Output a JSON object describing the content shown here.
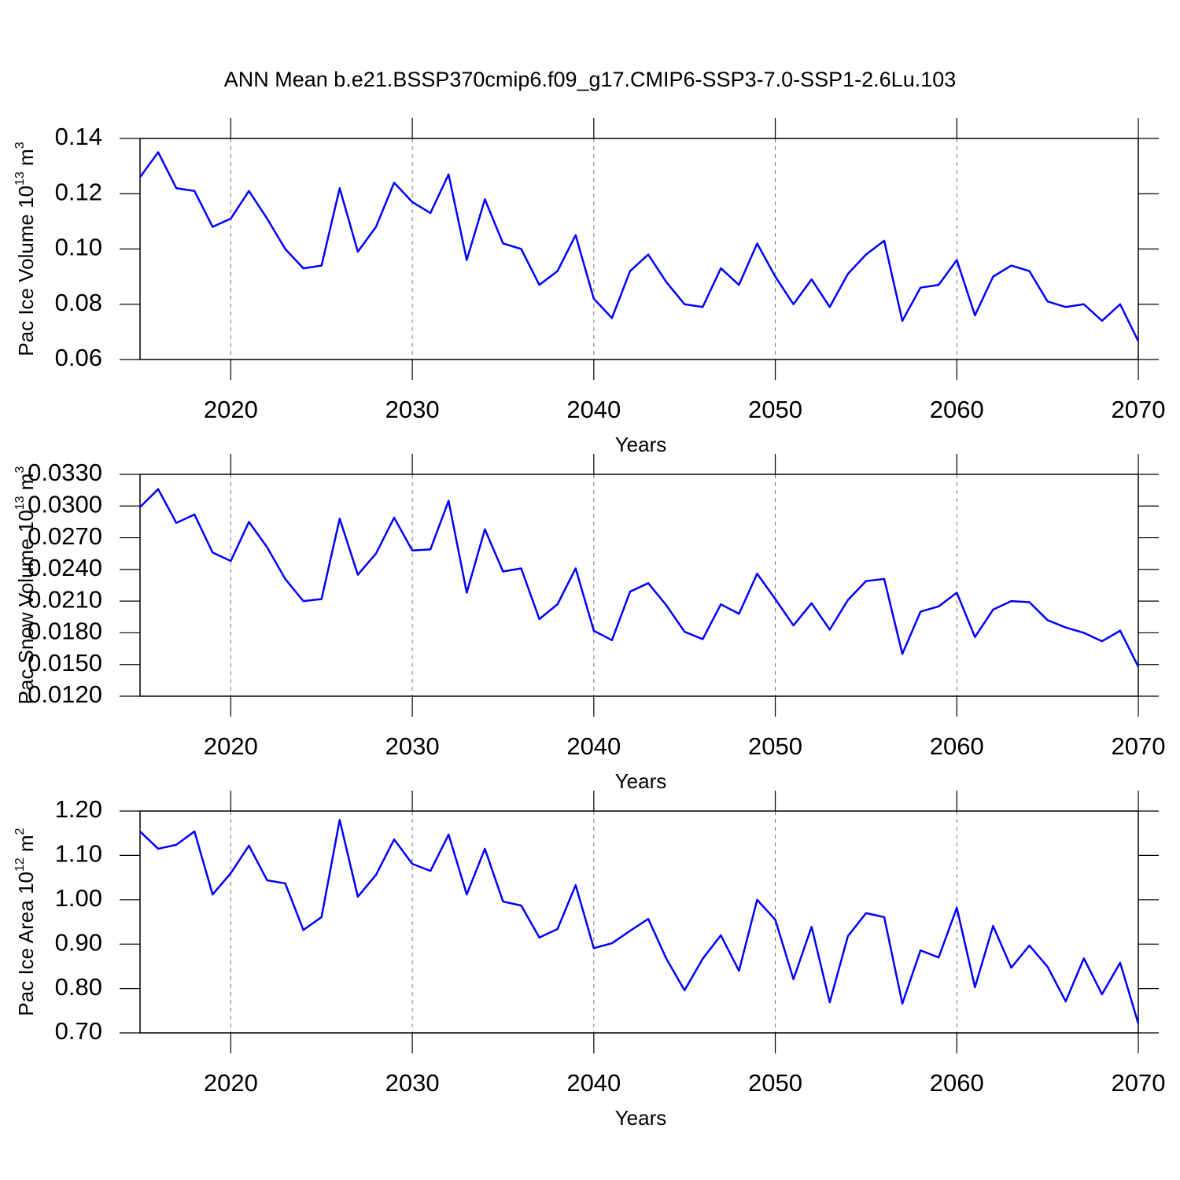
{
  "chart_data": [
    {
      "type": "line",
      "title": "ANN Mean b.e21.BSSP370cmip6.f09_g17.CMIP6-SSP3-7.0-SSP1-2.6Lu.103",
      "ylabel": [
        "Pac Ice Volume 10",
        "13",
        " m",
        "3"
      ],
      "xlabel": "Years",
      "color": "#0000ff",
      "grid": true,
      "x": [
        2015,
        2016,
        2017,
        2018,
        2019,
        2020,
        2021,
        2022,
        2023,
        2024,
        2025,
        2026,
        2027,
        2028,
        2029,
        2030,
        2031,
        2032,
        2033,
        2034,
        2035,
        2036,
        2037,
        2038,
        2039,
        2040,
        2041,
        2042,
        2043,
        2044,
        2045,
        2046,
        2047,
        2048,
        2049,
        2050,
        2051,
        2052,
        2053,
        2054,
        2055,
        2056,
        2057,
        2058,
        2059,
        2060,
        2061,
        2062,
        2063,
        2064,
        2065,
        2066,
        2067,
        2068,
        2069,
        2070
      ],
      "values": [
        0.126,
        0.135,
        0.122,
        0.121,
        0.108,
        0.111,
        0.121,
        0.111,
        0.1,
        0.093,
        0.094,
        0.122,
        0.099,
        0.108,
        0.124,
        0.117,
        0.113,
        0.127,
        0.096,
        0.118,
        0.102,
        0.1,
        0.087,
        0.092,
        0.105,
        0.082,
        0.075,
        0.092,
        0.098,
        0.088,
        0.08,
        0.079,
        0.093,
        0.087,
        0.102,
        0.09,
        0.08,
        0.089,
        0.079,
        0.091,
        0.098,
        0.103,
        0.074,
        0.086,
        0.087,
        0.096,
        0.076,
        0.09,
        0.094,
        0.092,
        0.081,
        0.079,
        0.08,
        0.074,
        0.08,
        0.0666
      ],
      "xlim": [
        2015,
        2070
      ],
      "xticks": [
        2020,
        2030,
        2040,
        2050,
        2060,
        2070
      ],
      "ylim": [
        0.06,
        0.14
      ],
      "yticks": [
        0.06,
        0.08,
        {
          "value": 0.1,
          "label": "0.10"
        },
        0.12,
        0.14
      ]
    },
    {
      "type": "line",
      "ylabel": [
        "Pac Snow Volume 10",
        "13",
        " m",
        "3"
      ],
      "xlabel": "Years",
      "color": "#0000ff",
      "grid": true,
      "x": [
        2015,
        2016,
        2017,
        2018,
        2019,
        2020,
        2021,
        2022,
        2023,
        2024,
        2025,
        2026,
        2027,
        2028,
        2029,
        2030,
        2031,
        2032,
        2033,
        2034,
        2035,
        2036,
        2037,
        2038,
        2039,
        2040,
        2041,
        2042,
        2043,
        2044,
        2045,
        2046,
        2047,
        2048,
        2049,
        2050,
        2051,
        2052,
        2053,
        2054,
        2055,
        2056,
        2057,
        2058,
        2059,
        2060,
        2061,
        2062,
        2063,
        2064,
        2065,
        2066,
        2067,
        2068,
        2069,
        2070
      ],
      "values": [
        0.0299,
        0.0316,
        0.0284,
        0.0292,
        0.0256,
        0.0248,
        0.0285,
        0.0261,
        0.0231,
        0.021,
        0.0212,
        0.0288,
        0.0235,
        0.0255,
        0.0289,
        0.0258,
        0.0259,
        0.0305,
        0.0218,
        0.0278,
        0.0238,
        0.0241,
        0.0193,
        0.0207,
        0.0241,
        0.0182,
        0.0173,
        0.0219,
        0.0227,
        0.0206,
        0.0181,
        0.0174,
        0.0207,
        0.0198,
        0.0236,
        0.0212,
        0.0187,
        0.0208,
        0.0183,
        0.0211,
        0.0229,
        0.0231,
        0.016,
        0.02,
        0.0205,
        0.0218,
        0.0176,
        0.0202,
        0.021,
        0.0209,
        0.0192,
        0.0185,
        0.018,
        0.0172,
        0.0182,
        0.0148
      ],
      "xlim": [
        2015,
        2070
      ],
      "xticks": [
        2020,
        2030,
        2040,
        2050,
        2060,
        2070
      ],
      "ylim": [
        0.012,
        0.033
      ],
      "yticks": [
        {
          "value": 0.012,
          "label": "0.0120"
        },
        {
          "value": 0.015,
          "label": "0.0150"
        },
        {
          "value": 0.018,
          "label": "0.0180"
        },
        {
          "value": 0.021,
          "label": "0.0210"
        },
        {
          "value": 0.024,
          "label": "0.0240"
        },
        {
          "value": 0.027,
          "label": "0.0270"
        },
        {
          "value": 0.03,
          "label": "0.0300"
        },
        {
          "value": 0.033,
          "label": "0.0330"
        }
      ]
    },
    {
      "type": "line",
      "ylabel": [
        "Pac Ice Area 10",
        "12",
        " m",
        "2"
      ],
      "xlabel": "Years",
      "color": "#0000ff",
      "grid": true,
      "x": [
        2015,
        2016,
        2017,
        2018,
        2019,
        2020,
        2021,
        2022,
        2023,
        2024,
        2025,
        2026,
        2027,
        2028,
        2029,
        2030,
        2031,
        2032,
        2033,
        2034,
        2035,
        2036,
        2037,
        2038,
        2039,
        2040,
        2041,
        2042,
        2043,
        2044,
        2045,
        2046,
        2047,
        2048,
        2049,
        2050,
        2051,
        2052,
        2053,
        2054,
        2055,
        2056,
        2057,
        2058,
        2059,
        2060,
        2061,
        2062,
        2063,
        2064,
        2065,
        2066,
        2067,
        2068,
        2069,
        2070
      ],
      "values": [
        1.154,
        1.115,
        1.124,
        1.154,
        1.012,
        1.06,
        1.122,
        1.044,
        1.037,
        0.932,
        0.961,
        1.18,
        1.007,
        1.056,
        1.136,
        1.081,
        1.065,
        1.147,
        1.012,
        1.115,
        0.996,
        0.987,
        0.915,
        0.934,
        1.033,
        0.891,
        0.902,
        0.93,
        0.957,
        0.867,
        0.796,
        0.867,
        0.92,
        0.84,
        1.0,
        0.955,
        0.821,
        0.939,
        0.769,
        0.918,
        0.97,
        0.961,
        0.766,
        0.886,
        0.87,
        0.982,
        0.803,
        0.941,
        0.847,
        0.897,
        0.849,
        0.771,
        0.868,
        0.787,
        0.858,
        0.721
      ],
      "xlim": [
        2015,
        2070
      ],
      "xticks": [
        2020,
        2030,
        2040,
        2050,
        2060,
        2070
      ],
      "ylim": [
        0.7,
        1.2
      ],
      "yticks": [
        {
          "value": 0.7,
          "label": "0.70"
        },
        {
          "value": 0.8,
          "label": "0.80"
        },
        {
          "value": 0.9,
          "label": "0.90"
        },
        {
          "value": 1.0,
          "label": "1.00"
        },
        {
          "value": 1.1,
          "label": "1.10"
        },
        {
          "value": 1.2,
          "label": "1.20"
        }
      ]
    }
  ]
}
